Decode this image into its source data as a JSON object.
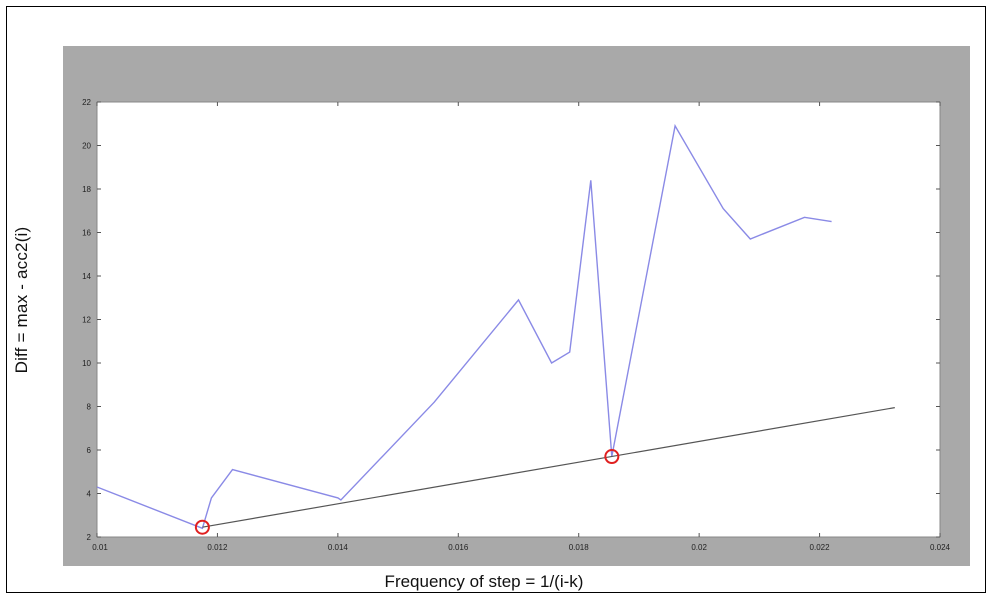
{
  "chart_data": {
    "type": "line",
    "title": "",
    "xlabel": "Frequency of step = 1/(i-k)",
    "ylabel": "Diff = max - acc2(i)",
    "xlim": [
      0.01,
      0.024
    ],
    "ylim": [
      2,
      22
    ],
    "xticks": [
      0.01,
      0.012,
      0.014,
      0.016,
      0.018,
      0.02,
      0.022,
      0.024
    ],
    "xtick_labels": [
      "0.01",
      "0.012",
      "0.014",
      "0.016",
      "0.018",
      "0.02",
      "0.022",
      "0.024"
    ],
    "yticks": [
      2,
      4,
      6,
      8,
      10,
      12,
      14,
      16,
      18,
      20,
      22
    ],
    "ytick_labels": [
      "2",
      "4",
      "6",
      "8",
      "10",
      "12",
      "14",
      "16",
      "18",
      "20",
      "22"
    ],
    "grid": false,
    "series": [
      {
        "type": "line",
        "color": "#8a8ae6",
        "x": [
          0.01,
          0.01175,
          0.0119,
          0.01225,
          0.014,
          0.01405,
          0.0156,
          0.017,
          0.01755,
          0.01785,
          0.0182,
          0.01855,
          0.0196,
          0.0204,
          0.02085,
          0.02175,
          0.0222
        ],
        "y": [
          4.3,
          2.4,
          3.8,
          5.1,
          3.8,
          3.7,
          8.2,
          12.9,
          10.0,
          10.5,
          18.4,
          5.7,
          20.9,
          17.1,
          15.7,
          16.7,
          16.5
        ]
      },
      {
        "type": "line",
        "color": "#555555",
        "x": [
          0.01175,
          0.02325
        ],
        "y": [
          2.45,
          7.95
        ]
      },
      {
        "type": "scatter",
        "marker": "circle",
        "color": "#e02020",
        "x": [
          0.01175,
          0.01855
        ],
        "y": [
          2.45,
          5.7
        ]
      }
    ]
  }
}
